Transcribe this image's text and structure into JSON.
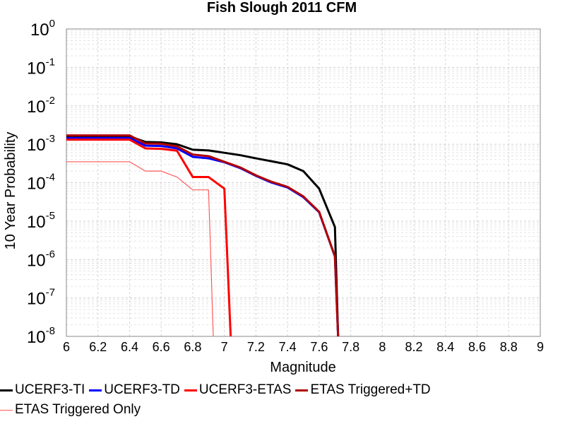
{
  "chart_data": {
    "type": "line",
    "title": "Fish Slough 2011 CFM",
    "xlabel": "Magnitude",
    "ylabel": "10 Year Probability",
    "xlim": [
      6,
      9
    ],
    "ylim": [
      1e-08,
      1
    ],
    "yscale": "log",
    "grid": true,
    "legend_position": "bottom",
    "x_ticks": [
      "6",
      "6.2",
      "6.4",
      "6.6",
      "6.8",
      "7",
      "7.2",
      "7.4",
      "7.6",
      "7.8",
      "8",
      "8.2",
      "8.4",
      "8.6",
      "8.8",
      "9"
    ],
    "y_ticks": [
      {
        "base": "10",
        "exp": "0"
      },
      {
        "base": "10",
        "exp": "-1"
      },
      {
        "base": "10",
        "exp": "-2"
      },
      {
        "base": "10",
        "exp": "-3"
      },
      {
        "base": "10",
        "exp": "-4"
      },
      {
        "base": "10",
        "exp": "-5"
      },
      {
        "base": "10",
        "exp": "-6"
      },
      {
        "base": "10",
        "exp": "-7"
      },
      {
        "base": "10",
        "exp": "-8"
      }
    ],
    "series": [
      {
        "name": "UCERF3-TI",
        "color": "#000000",
        "width": 3,
        "x": [
          6.0,
          6.1,
          6.2,
          6.3,
          6.4,
          6.5,
          6.6,
          6.7,
          6.8,
          6.9,
          7.0,
          7.1,
          7.2,
          7.3,
          7.4,
          7.5,
          7.6,
          7.7,
          7.72,
          7.73
        ],
        "y": [
          0.0016,
          0.0016,
          0.0016,
          0.0016,
          0.0016,
          0.00115,
          0.00112,
          0.001,
          0.00072,
          0.00069,
          0.0006,
          0.00052,
          0.00043,
          0.00036,
          0.0003,
          0.0002,
          7e-05,
          7e-06,
          1e-08,
          1e-09
        ]
      },
      {
        "name": "UCERF3-TD",
        "color": "#0000ff",
        "width": 3,
        "x": [
          6.0,
          6.1,
          6.2,
          6.3,
          6.4,
          6.5,
          6.6,
          6.7,
          6.8,
          6.9,
          7.0,
          7.1,
          7.2,
          7.3,
          7.4,
          7.5,
          7.6,
          7.7,
          7.72,
          7.73
        ],
        "y": [
          0.00145,
          0.00145,
          0.00145,
          0.00145,
          0.00145,
          0.00092,
          0.0009,
          0.00078,
          0.00047,
          0.00043,
          0.00034,
          0.00024,
          0.00015,
          0.0001,
          7.5e-05,
          4.2e-05,
          1.7e-05,
          1.2e-06,
          1e-08,
          1e-09
        ]
      },
      {
        "name": "UCERF3-ETAS",
        "color": "#ff0000",
        "width": 3,
        "x": [
          6.0,
          6.1,
          6.2,
          6.3,
          6.4,
          6.5,
          6.6,
          6.7,
          6.8,
          6.9,
          7.0,
          7.04,
          7.045
        ],
        "y": [
          0.00132,
          0.00132,
          0.00132,
          0.00132,
          0.00132,
          0.00078,
          0.00076,
          0.00068,
          0.00014,
          0.00014,
          7e-05,
          1e-08,
          1e-09
        ]
      },
      {
        "name": "ETAS Triggered+TD",
        "color": "#b00000",
        "width": 3,
        "x": [
          6.0,
          6.1,
          6.2,
          6.3,
          6.4,
          6.5,
          6.6,
          6.7,
          6.8,
          6.9,
          7.0,
          7.1,
          7.2,
          7.3,
          7.4,
          7.5,
          7.6,
          7.7,
          7.72,
          7.73
        ],
        "y": [
          0.0017,
          0.0017,
          0.0017,
          0.0017,
          0.0017,
          0.00105,
          0.00103,
          0.00088,
          0.00054,
          0.00049,
          0.00035,
          0.00025,
          0.000155,
          0.000105,
          7.8e-05,
          4.4e-05,
          1.75e-05,
          1.2e-06,
          1e-08,
          1e-09
        ]
      },
      {
        "name": "ETAS Triggered Only",
        "color": "#ff5a5a",
        "width": 1.2,
        "x": [
          6.0,
          6.1,
          6.2,
          6.3,
          6.4,
          6.5,
          6.6,
          6.7,
          6.8,
          6.9,
          6.93,
          6.935
        ],
        "y": [
          0.00035,
          0.00035,
          0.00035,
          0.00035,
          0.00035,
          0.0002,
          0.0002,
          0.00014,
          6.5e-05,
          6.5e-05,
          1e-08,
          1e-09
        ]
      }
    ]
  }
}
